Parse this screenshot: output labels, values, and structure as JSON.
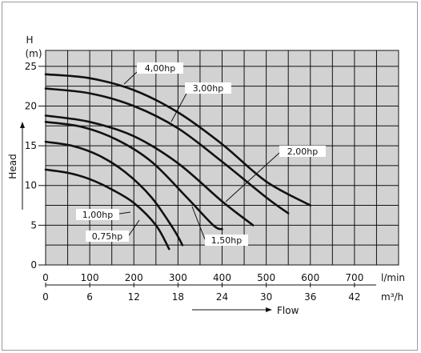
{
  "chart_data": {
    "type": "line",
    "title": "",
    "y_axis": {
      "symbol": "H",
      "unit": "(m)",
      "name": "Head",
      "ticks": [
        0,
        5,
        10,
        15,
        20,
        25
      ],
      "range": [
        0,
        27
      ]
    },
    "x_axis_primary": {
      "unit": "l/min",
      "ticks": [
        0,
        100,
        200,
        300,
        400,
        500,
        600,
        700
      ],
      "range": [
        0,
        800
      ]
    },
    "x_axis_secondary": {
      "unit": "m³/h",
      "ticks": [
        0,
        6,
        12,
        18,
        24,
        30,
        36,
        42
      ]
    },
    "x_axis_name": "Flow",
    "grid": true,
    "series": [
      {
        "name": "0,75hp",
        "points": [
          [
            0,
            12
          ],
          [
            50,
            11.6
          ],
          [
            100,
            10.8
          ],
          [
            150,
            9.5
          ],
          [
            200,
            7.8
          ],
          [
            250,
            5.0
          ],
          [
            280,
            2.0
          ]
        ]
      },
      {
        "name": "1,00hp",
        "points": [
          [
            0,
            15.5
          ],
          [
            60,
            15.0
          ],
          [
            120,
            13.8
          ],
          [
            180,
            11.7
          ],
          [
            240,
            8.5
          ],
          [
            290,
            4.5
          ],
          [
            310,
            2.5
          ]
        ]
      },
      {
        "name": "1,50hp",
        "points": [
          [
            0,
            18
          ],
          [
            80,
            17.4
          ],
          [
            160,
            15.8
          ],
          [
            240,
            13.0
          ],
          [
            320,
            8.5
          ],
          [
            380,
            5.0
          ],
          [
            400,
            4.5
          ]
        ]
      },
      {
        "name": "2,00hp",
        "points": [
          [
            0,
            18.8
          ],
          [
            100,
            18.0
          ],
          [
            200,
            16.2
          ],
          [
            300,
            12.8
          ],
          [
            400,
            8.0
          ],
          [
            470,
            5.0
          ]
        ]
      },
      {
        "name": "3,00hp",
        "points": [
          [
            0,
            22.2
          ],
          [
            100,
            21.6
          ],
          [
            200,
            20.0
          ],
          [
            300,
            17.2
          ],
          [
            400,
            13.0
          ],
          [
            500,
            8.5
          ],
          [
            550,
            6.5
          ]
        ]
      },
      {
        "name": "4,00hp",
        "points": [
          [
            0,
            24
          ],
          [
            100,
            23.5
          ],
          [
            200,
            22.0
          ],
          [
            300,
            19.2
          ],
          [
            400,
            15.2
          ],
          [
            500,
            10.5
          ],
          [
            600,
            7.5
          ]
        ]
      }
    ]
  },
  "labels": {
    "s0": "0,75hp",
    "s1": "1,00hp",
    "s2": "1,50hp",
    "s3": "2,00hp",
    "s4": "3,00hp",
    "s5": "4,00hp"
  }
}
